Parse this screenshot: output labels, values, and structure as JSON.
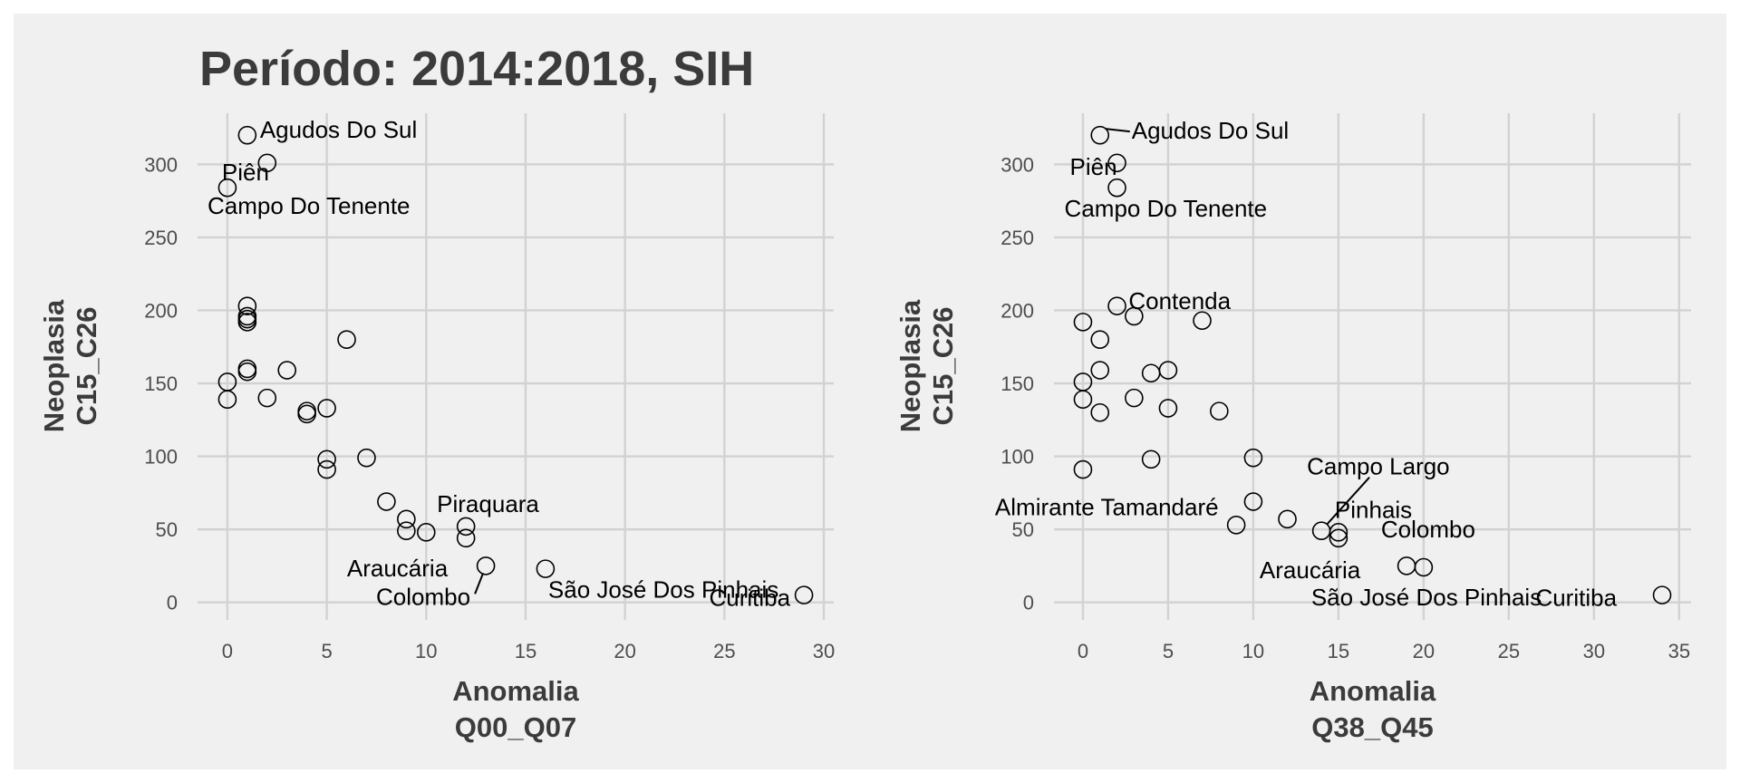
{
  "title": "Período: 2014:2018, SIH",
  "colors": {
    "panel_background": "#f0f0f0",
    "grid": "#d2d2d2",
    "point_stroke": "#000000",
    "text": "#3b3b3b"
  },
  "chart_data": [
    {
      "type": "scatter",
      "xlabel": [
        "Anomalia",
        "Q00_Q07"
      ],
      "ylabel": [
        "Neoplasia",
        "C15_C26"
      ],
      "xlim": [
        -1.5,
        30.5
      ],
      "ylim": [
        -12,
        335
      ],
      "xticks": [
        0,
        5,
        10,
        15,
        20,
        25,
        30
      ],
      "yticks": [
        0,
        50,
        100,
        150,
        200,
        250,
        300
      ],
      "grid": true,
      "points": [
        {
          "x": 1,
          "y": 320,
          "label": "Agudos Do Sul"
        },
        {
          "x": 2,
          "y": 301,
          "label": ""
        },
        {
          "x": 0,
          "y": 284,
          "label": "Piên"
        },
        {
          "x": 1,
          "y": 203,
          "label": ""
        },
        {
          "x": 1,
          "y": 196,
          "label": ""
        },
        {
          "x": 1,
          "y": 194,
          "label": ""
        },
        {
          "x": 1,
          "y": 192,
          "label": ""
        },
        {
          "x": 6,
          "y": 180,
          "label": ""
        },
        {
          "x": 1,
          "y": 160,
          "label": ""
        },
        {
          "x": 1,
          "y": 158,
          "label": ""
        },
        {
          "x": 3,
          "y": 159,
          "label": ""
        },
        {
          "x": 0,
          "y": 151,
          "label": ""
        },
        {
          "x": 2,
          "y": 140,
          "label": ""
        },
        {
          "x": 0,
          "y": 139,
          "label": ""
        },
        {
          "x": 4,
          "y": 131,
          "label": ""
        },
        {
          "x": 4,
          "y": 129,
          "label": ""
        },
        {
          "x": 5,
          "y": 133,
          "label": ""
        },
        {
          "x": 5,
          "y": 98,
          "label": ""
        },
        {
          "x": 7,
          "y": 99,
          "label": ""
        },
        {
          "x": 5,
          "y": 91,
          "label": ""
        },
        {
          "x": 8,
          "y": 69,
          "label": ""
        },
        {
          "x": 9,
          "y": 57,
          "label": ""
        },
        {
          "x": 9,
          "y": 49,
          "label": ""
        },
        {
          "x": 10,
          "y": 48,
          "label": ""
        },
        {
          "x": 12,
          "y": 52,
          "label": "Piraquara"
        },
        {
          "x": 12,
          "y": 44,
          "label": "Araucária"
        },
        {
          "x": 13,
          "y": 25,
          "label": "Colombo"
        },
        {
          "x": 16,
          "y": 23,
          "label": "São José Dos Pinhais"
        },
        {
          "x": 29,
          "y": 5,
          "label": "Curitiba"
        }
      ],
      "extra_labels": [
        "Campo Do Tenente"
      ]
    },
    {
      "type": "scatter",
      "xlabel": [
        "Anomalia",
        "Q38_Q45"
      ],
      "ylabel": [
        "Neoplasia",
        "C15_C26"
      ],
      "xlim": [
        -1.7,
        35.7
      ],
      "ylim": [
        -12,
        335
      ],
      "xticks": [
        0,
        5,
        10,
        15,
        20,
        25,
        30,
        35
      ],
      "yticks": [
        0,
        50,
        100,
        150,
        200,
        250,
        300
      ],
      "grid": true,
      "points": [
        {
          "x": 1,
          "y": 320,
          "label": "Agudos Do Sul"
        },
        {
          "x": 2,
          "y": 301,
          "label": "Piên"
        },
        {
          "x": 2,
          "y": 284,
          "label": "Campo Do Tenente"
        },
        {
          "x": 2,
          "y": 203,
          "label": ""
        },
        {
          "x": 3,
          "y": 196,
          "label": "Contenda"
        },
        {
          "x": 7,
          "y": 193,
          "label": ""
        },
        {
          "x": 0,
          "y": 192,
          "label": ""
        },
        {
          "x": 1,
          "y": 180,
          "label": ""
        },
        {
          "x": 1,
          "y": 159,
          "label": ""
        },
        {
          "x": 4,
          "y": 157,
          "label": ""
        },
        {
          "x": 5,
          "y": 159,
          "label": ""
        },
        {
          "x": 0,
          "y": 151,
          "label": ""
        },
        {
          "x": 0,
          "y": 139,
          "label": ""
        },
        {
          "x": 3,
          "y": 140,
          "label": ""
        },
        {
          "x": 1,
          "y": 130,
          "label": ""
        },
        {
          "x": 5,
          "y": 133,
          "label": ""
        },
        {
          "x": 8,
          "y": 131,
          "label": ""
        },
        {
          "x": 4,
          "y": 98,
          "label": ""
        },
        {
          "x": 10,
          "y": 99,
          "label": ""
        },
        {
          "x": 0,
          "y": 91,
          "label": ""
        },
        {
          "x": 10,
          "y": 69,
          "label": "Almirante Tamandaré"
        },
        {
          "x": 12,
          "y": 57,
          "label": ""
        },
        {
          "x": 9,
          "y": 53,
          "label": ""
        },
        {
          "x": 14,
          "y": 49,
          "label": "Campo Largo"
        },
        {
          "x": 15,
          "y": 48,
          "label": "Pinhais"
        },
        {
          "x": 15,
          "y": 44,
          "label": "Araucária"
        },
        {
          "x": 19,
          "y": 25,
          "label": ""
        },
        {
          "x": 20,
          "y": 24,
          "label": "Colombo"
        },
        {
          "x": 34,
          "y": 5,
          "label": "Curitiba"
        }
      ],
      "extra_labels": [
        "São José Dos Pinhais"
      ]
    }
  ]
}
